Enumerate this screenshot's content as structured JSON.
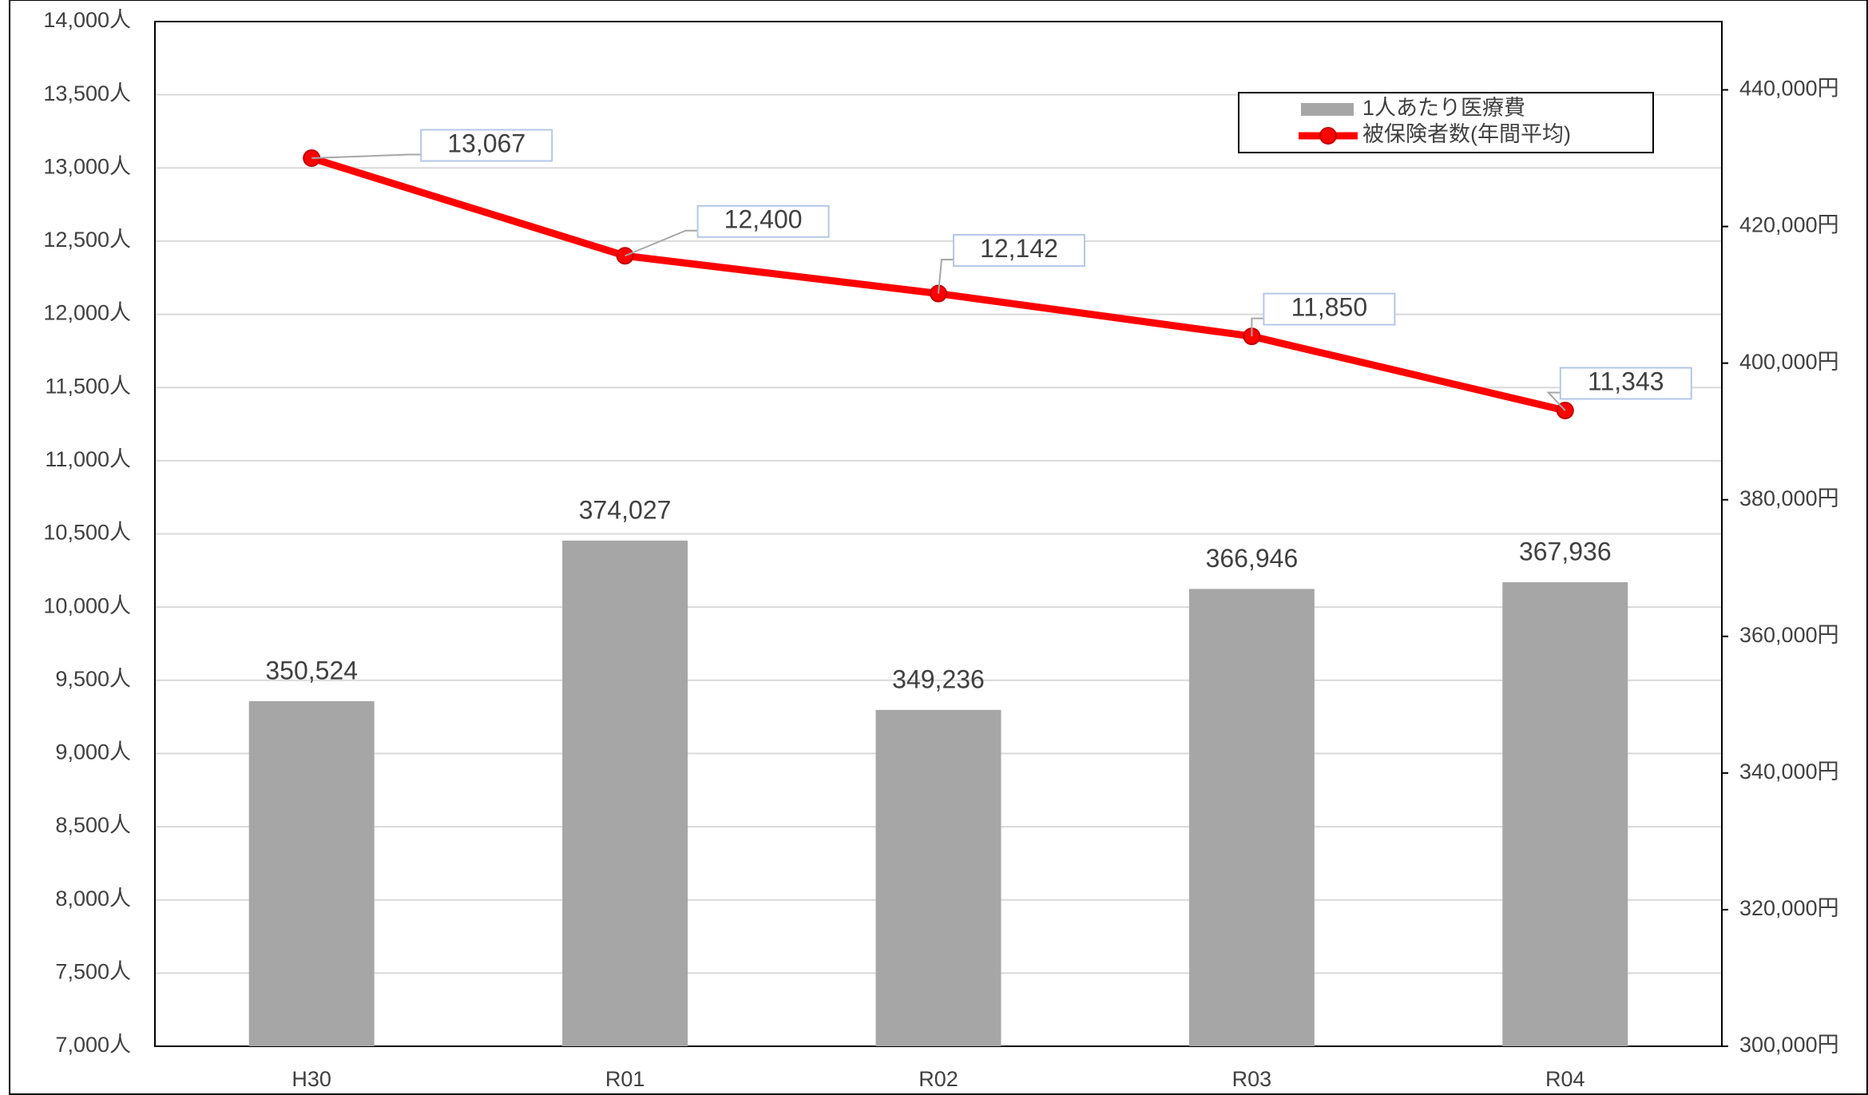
{
  "chart_data": {
    "type": "combo",
    "categories": [
      "H30",
      "R01",
      "R02",
      "R03",
      "R04"
    ],
    "series": [
      {
        "name": "1人あたり医療費",
        "type": "bar",
        "axis": "y2",
        "color": "#a6a6a6",
        "values": [
          350524,
          374027,
          349236,
          366946,
          367936
        ],
        "value_labels": [
          "350,524",
          "374,027",
          "349,236",
          "366,946",
          "367,936"
        ]
      },
      {
        "name": "被保険者数(年間平均)",
        "type": "line",
        "color": "#ff0000",
        "values": [
          13067,
          12400,
          12142,
          11850,
          11343
        ],
        "value_labels": [
          "13,067",
          "12,400",
          "12,142",
          "11,850",
          "11,343"
        ]
      }
    ],
    "ylim": [
      7000,
      14000
    ],
    "yticks": [
      {
        "value": 7000,
        "label": "7,000人"
      },
      {
        "value": 7500,
        "label": "7,500人"
      },
      {
        "value": 8000,
        "label": "8,000人"
      },
      {
        "value": 8500,
        "label": "8,500人"
      },
      {
        "value": 9000,
        "label": "9,000人"
      },
      {
        "value": 9500,
        "label": "9,500人"
      },
      {
        "value": 10000,
        "label": "10,000人"
      },
      {
        "value": 10500,
        "label": "10,500人"
      },
      {
        "value": 11000,
        "label": "11,000人"
      },
      {
        "value": 11500,
        "label": "11,500人"
      },
      {
        "value": 12000,
        "label": "12,000人"
      },
      {
        "value": 12500,
        "label": "12,500人"
      },
      {
        "value": 13000,
        "label": "13,000人"
      },
      {
        "value": 13500,
        "label": "13,500人"
      },
      {
        "value": 14000,
        "label": "14,000人"
      }
    ],
    "y2lim": [
      300000,
      450000
    ],
    "y2ticks": [
      {
        "value": 300000,
        "label": "300,000円"
      },
      {
        "value": 320000,
        "label": "320,000円"
      },
      {
        "value": 340000,
        "label": "340,000円"
      },
      {
        "value": 360000,
        "label": "360,000円"
      },
      {
        "value": 380000,
        "label": "380,000円"
      },
      {
        "value": 400000,
        "label": "400,000円"
      },
      {
        "value": 420000,
        "label": "420,000円"
      },
      {
        "value": 440000,
        "label": "440,000円"
      }
    ],
    "grid": true
  }
}
